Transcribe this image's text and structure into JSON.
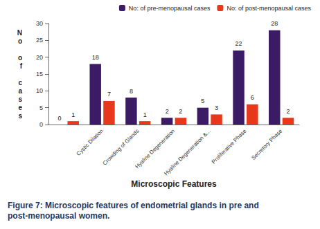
{
  "chart_data": {
    "type": "bar",
    "title": "Figure 7: Microscopic features of endometrial glands in pre and post-menopausal women.",
    "x_label": "Microscopic Features",
    "y_label": "No of cases",
    "categories": [
      null,
      "Cystic Dilation",
      "Crowding of Glands",
      "Hyaline Degeneration",
      "Hyaline Degeneration &...",
      "Proliferative Phase",
      "Secretory Phase"
    ],
    "series": [
      {
        "name": "No: of pre-menopausal cases",
        "color": "#3b1a66",
        "values": [
          0,
          18,
          8,
          2,
          5,
          22,
          28
        ]
      },
      {
        "name": "No: of post-menopausal cases",
        "color": "#e8381c",
        "values": [
          1,
          7,
          1,
          2,
          3,
          6,
          2
        ]
      }
    ],
    "ylim": [
      0,
      30
    ],
    "yticks": [
      0,
      5,
      10,
      15,
      20,
      25,
      30
    ],
    "grid": false,
    "legend": "top-right",
    "data_labels": true
  }
}
